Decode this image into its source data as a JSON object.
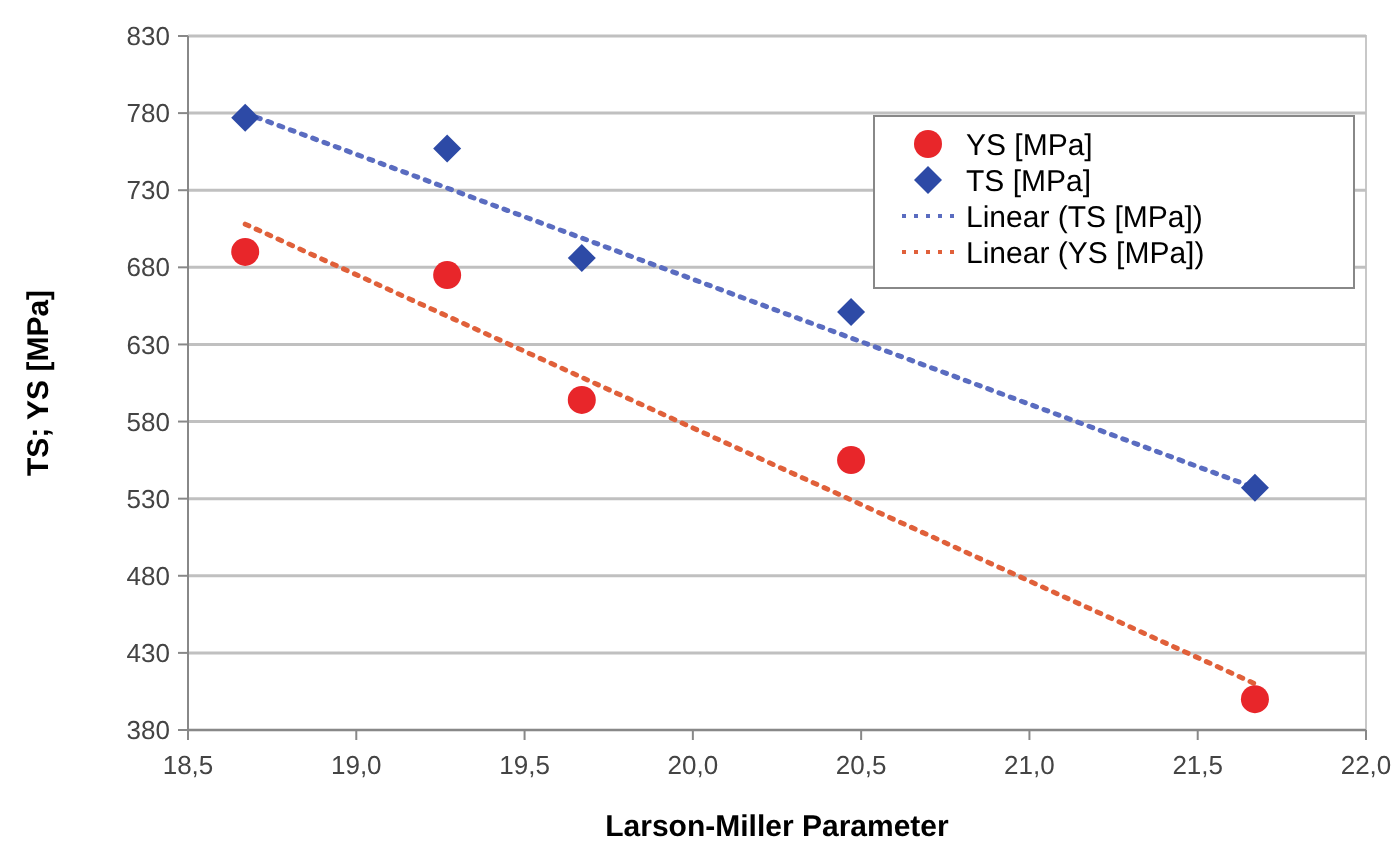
{
  "chart_data": {
    "type": "scatter",
    "xlabel": "Larson-Miller Parameter",
    "ylabel": "TS; YS [MPa]",
    "xlim": [
      18.5,
      22.0
    ],
    "xticks": [
      {
        "value": 18.5,
        "label": "18,5"
      },
      {
        "value": 19,
        "label": "19,0"
      },
      {
        "value": 19.5,
        "label": "19,5"
      },
      {
        "value": 20,
        "label": "20,0"
      },
      {
        "value": 20.5,
        "label": "20,5"
      },
      {
        "value": 21,
        "label": "21,0"
      },
      {
        "value": 21.5,
        "label": "21,5"
      },
      {
        "value": 22,
        "label": "22,0"
      }
    ],
    "ylim": [
      380,
      830
    ],
    "yticks": [
      380,
      430,
      480,
      530,
      580,
      630,
      680,
      730,
      780,
      830
    ],
    "grid": "y",
    "legend": "top right",
    "series": [
      {
        "name": "YS [MPa]",
        "color": "#e8262a",
        "marker": "circle",
        "x": [
          18.67,
          19.27,
          19.67,
          20.47,
          21.67
        ],
        "values": [
          690,
          675,
          594,
          555,
          400
        ]
      },
      {
        "name": "TS [MPa]",
        "color": "#2d4aa6",
        "marker": "diamond",
        "x": [
          18.67,
          19.27,
          19.67,
          20.47,
          21.67
        ],
        "values": [
          777,
          757,
          686,
          651,
          537
        ]
      },
      {
        "name": "Linear (TS [MPa])",
        "type": "line",
        "line_style": "dotted",
        "color": "#5a6cc0",
        "x": [
          18.67,
          21.67
        ],
        "values": [
          780,
          537
        ]
      },
      {
        "name": "Linear (YS [MPa])",
        "type": "line",
        "line_style": "dotted",
        "color": "#e0603a",
        "x": [
          18.67,
          21.67
        ],
        "values": [
          708,
          410
        ]
      }
    ]
  }
}
